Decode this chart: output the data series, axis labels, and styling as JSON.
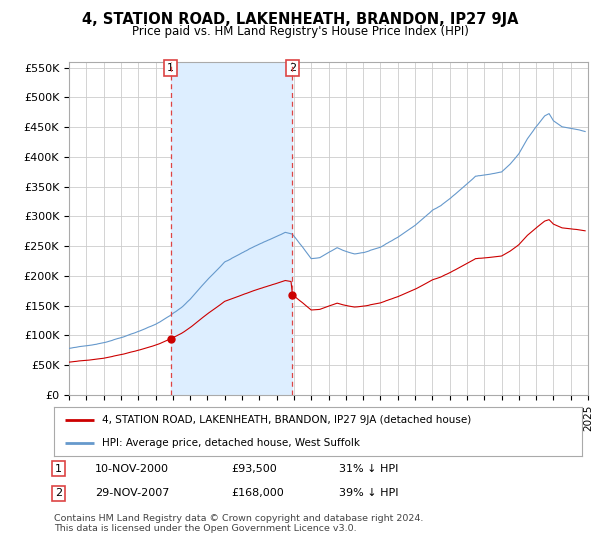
{
  "title": "4, STATION ROAD, LAKENHEATH, BRANDON, IP27 9JA",
  "subtitle": "Price paid vs. HM Land Registry's House Price Index (HPI)",
  "ylabel_ticks": [
    "£0",
    "£50K",
    "£100K",
    "£150K",
    "£200K",
    "£250K",
    "£300K",
    "£350K",
    "£400K",
    "£450K",
    "£500K",
    "£550K"
  ],
  "ytick_values": [
    0,
    50000,
    100000,
    150000,
    200000,
    250000,
    300000,
    350000,
    400000,
    450000,
    500000,
    550000
  ],
  "ylim": [
    0,
    560000
  ],
  "legend_line1": "4, STATION ROAD, LAKENHEATH, BRANDON, IP27 9JA (detached house)",
  "legend_line2": "HPI: Average price, detached house, West Suffolk",
  "marker1_date": "10-NOV-2000",
  "marker1_price": "£93,500",
  "marker1_hpi": "31% ↓ HPI",
  "marker2_date": "29-NOV-2007",
  "marker2_price": "£168,000",
  "marker2_hpi": "39% ↓ HPI",
  "footnote": "Contains HM Land Registry data © Crown copyright and database right 2024.\nThis data is licensed under the Open Government Licence v3.0.",
  "line_color_red": "#cc0000",
  "line_color_blue": "#6699cc",
  "marker_vline_color": "#dd4444",
  "shade_color": "#ddeeff",
  "background_color": "#ffffff",
  "grid_color": "#cccccc",
  "hpi_years_monthly": null,
  "hpi_values_monthly": null,
  "marker1_x": 2000.87,
  "marker1_y": 93500,
  "marker2_x": 2007.91,
  "marker2_y": 168000,
  "vline1_x": 2000.87,
  "vline2_x": 2007.91,
  "xmin": 1995,
  "xmax": 2025
}
